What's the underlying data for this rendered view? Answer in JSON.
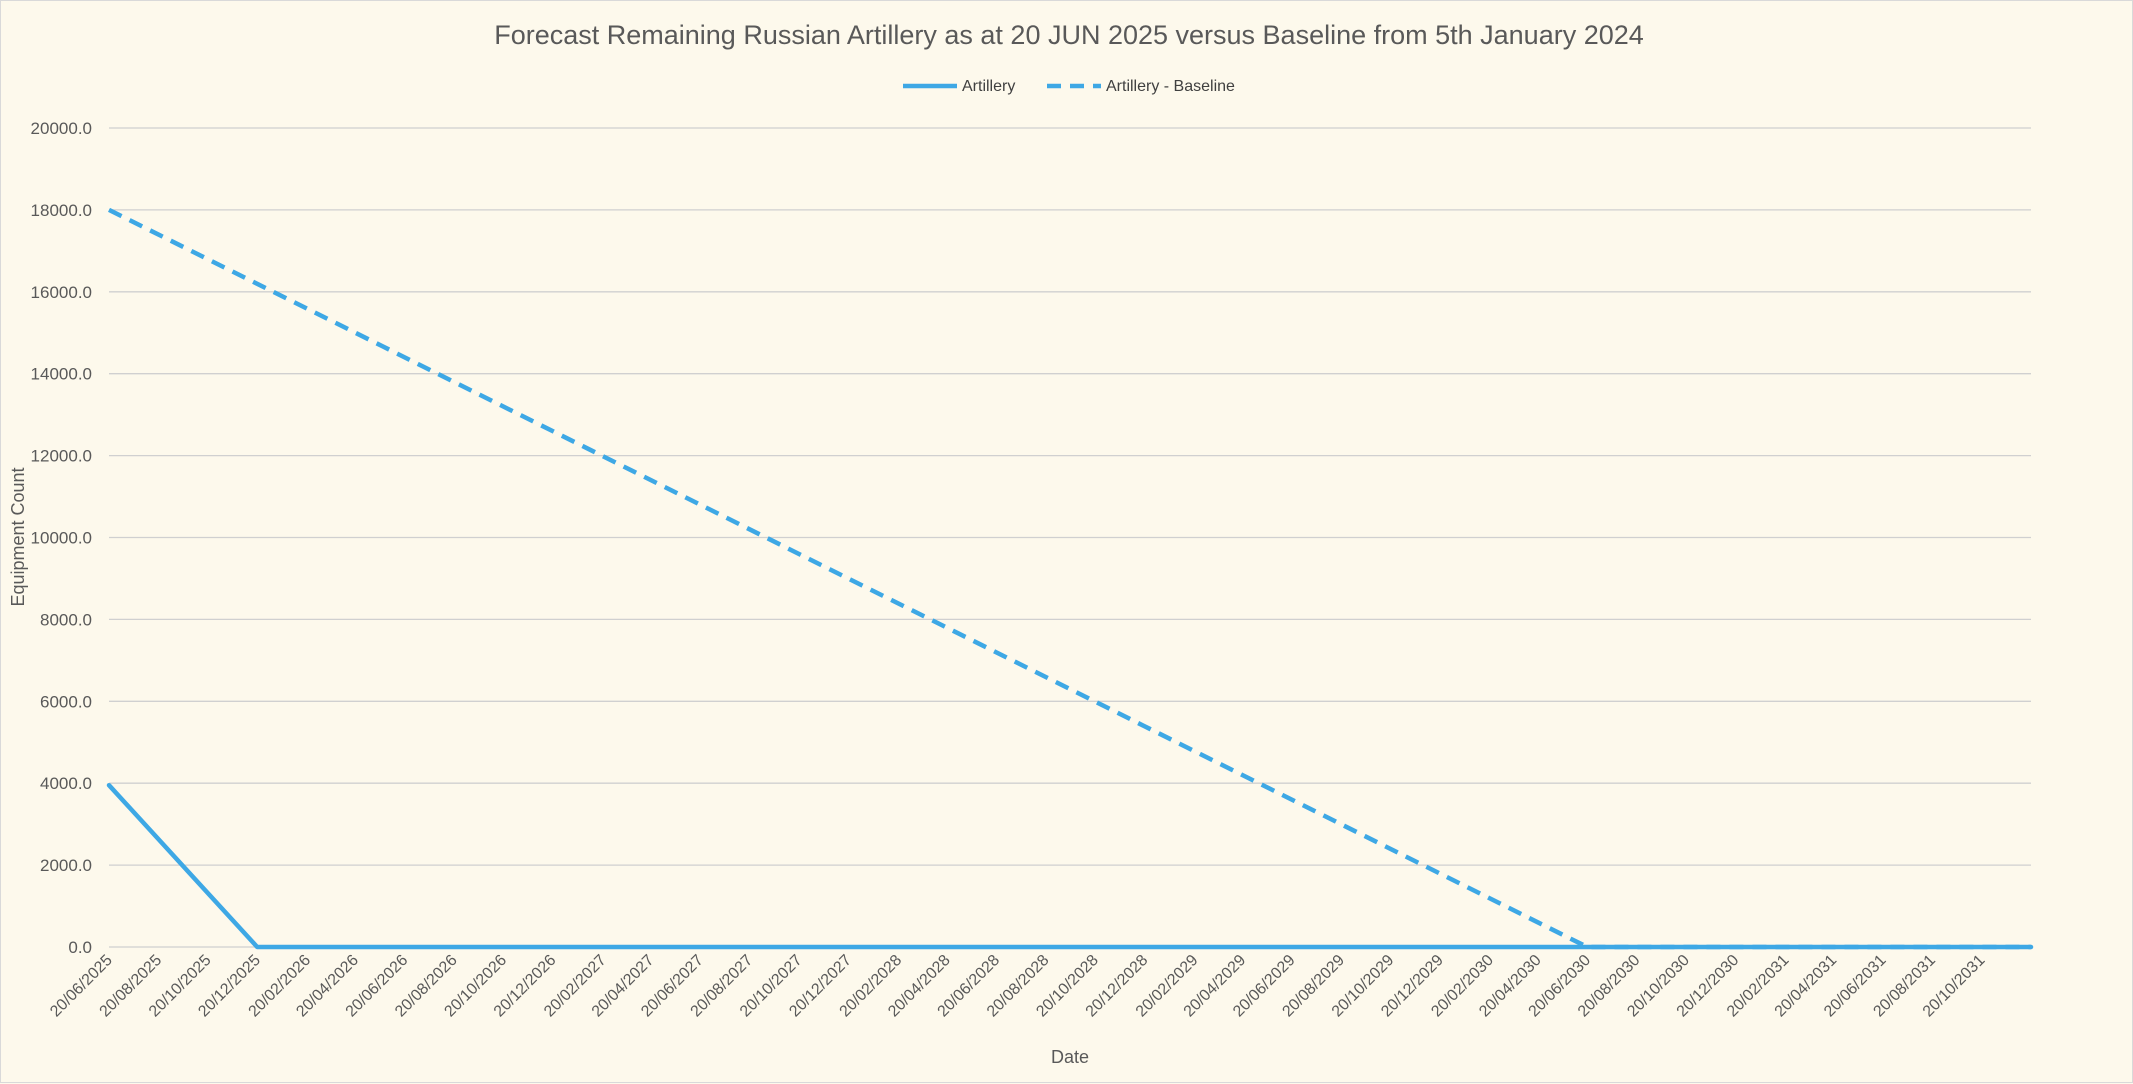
{
  "chart_data": {
    "type": "line",
    "title": "Forecast Remaining Russian Artillery as at 20 JUN 2025 versus Baseline from 5th January 2024",
    "xlabel": "Date",
    "ylabel": "Equipment Count",
    "ylim": [
      0,
      20000
    ],
    "y_ticks": [
      "0.0",
      "2000.0",
      "4000.0",
      "6000.0",
      "8000.0",
      "10000.0",
      "12000.0",
      "14000.0",
      "16000.0",
      "18000.0",
      "20000.0"
    ],
    "x_range": [
      "2025-06-20",
      "2031-12-20"
    ],
    "x_ticks": [
      "20/06/2025",
      "20/08/2025",
      "20/10/2025",
      "20/12/2025",
      "20/02/2026",
      "20/04/2026",
      "20/06/2026",
      "20/08/2026",
      "20/10/2026",
      "20/12/2026",
      "20/02/2027",
      "20/04/2027",
      "20/06/2027",
      "20/08/2027",
      "20/10/2027",
      "20/12/2027",
      "20/02/2028",
      "20/04/2028",
      "20/06/2028",
      "20/08/2028",
      "20/10/2028",
      "20/12/2028",
      "20/02/2029",
      "20/04/2029",
      "20/06/2029",
      "20/08/2029",
      "20/10/2029",
      "20/12/2029",
      "20/02/2030",
      "20/04/2030",
      "20/06/2030",
      "20/08/2030",
      "20/10/2030",
      "20/12/2030",
      "20/02/2031",
      "20/04/2031",
      "20/06/2031",
      "20/08/2031",
      "20/10/2031"
    ],
    "legend_position": "top-center",
    "grid": true,
    "series": [
      {
        "name": "Artillery",
        "style": "solid",
        "color": "#3ea8e5",
        "points": [
          {
            "x": "2025-06-20",
            "y": 3950
          },
          {
            "x": "2025-12-20",
            "y": 0
          },
          {
            "x": "2031-12-20",
            "y": 0
          }
        ]
      },
      {
        "name": "Artillery - Baseline",
        "style": "dashed",
        "color": "#3ea8e5",
        "points": [
          {
            "x": "2025-06-20",
            "y": 18000
          },
          {
            "x": "2030-06-20",
            "y": 0
          },
          {
            "x": "2031-12-20",
            "y": 0
          }
        ]
      }
    ]
  }
}
